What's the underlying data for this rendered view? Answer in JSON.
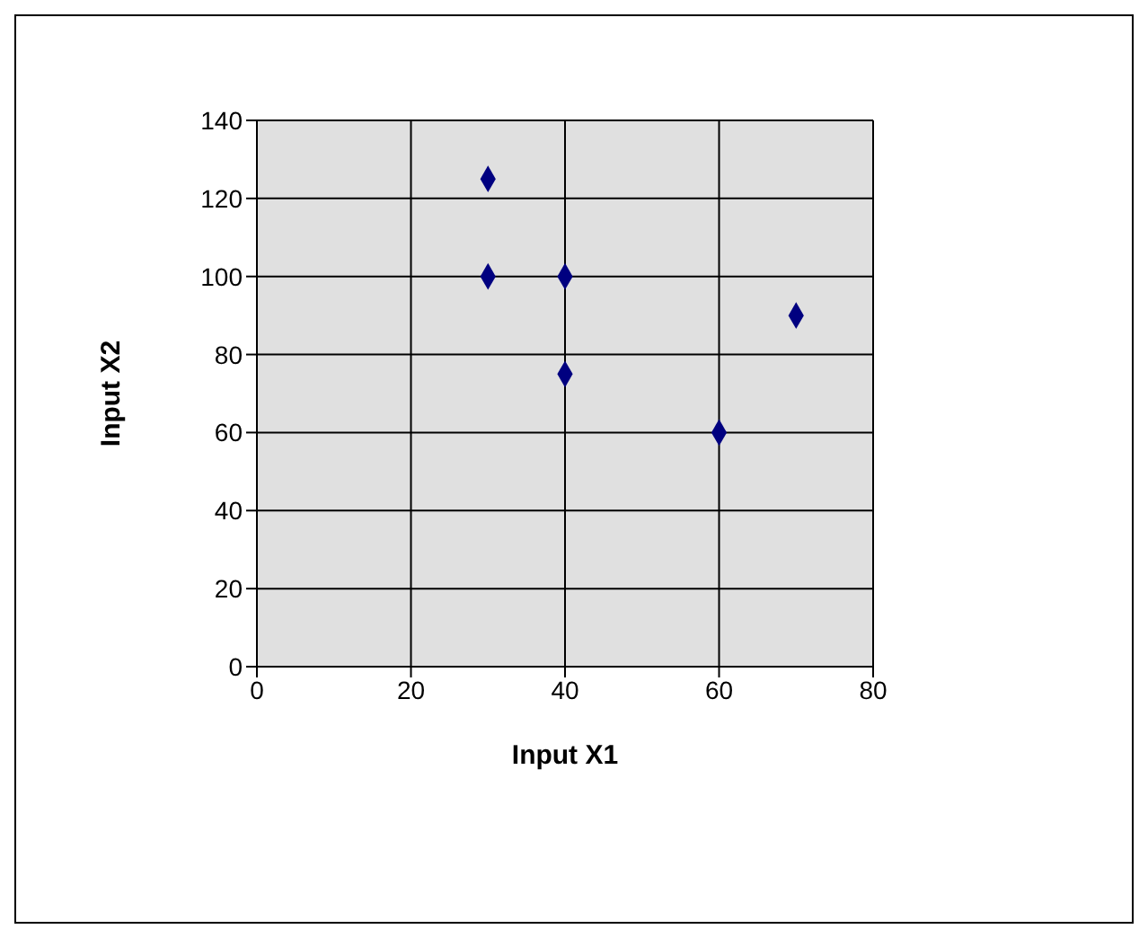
{
  "chart_data": {
    "type": "scatter",
    "xlabel": "Input X1",
    "ylabel": "Input X2",
    "x": [
      30,
      30,
      40,
      40,
      60,
      70
    ],
    "series": [
      {
        "color": "#000080",
        "values": [
          125,
          100,
          100,
          75,
          60,
          90
        ]
      }
    ],
    "xlim": [
      0,
      80
    ],
    "xticks": [
      0,
      20,
      40,
      60,
      80
    ],
    "ylim": [
      0,
      140
    ],
    "yticks": [
      0,
      20,
      40,
      60,
      80,
      100,
      120,
      140
    ],
    "grid": true,
    "marker": "diamond"
  }
}
